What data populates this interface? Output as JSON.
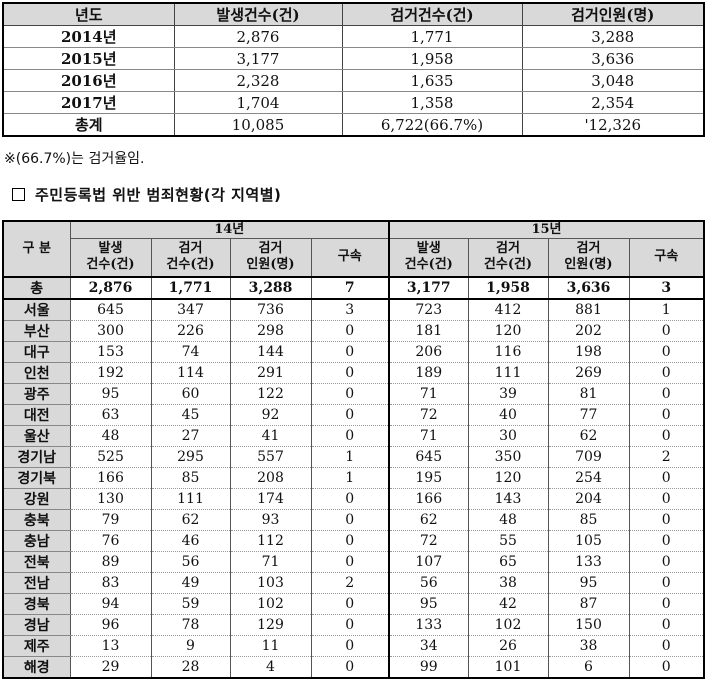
{
  "summary": {
    "headers": [
      "년도",
      "발생건수(건)",
      "검거건수(건)",
      "검거인원(명)"
    ],
    "rows": [
      [
        "2014년",
        "2,876",
        "1,771",
        "3,288"
      ],
      [
        "2015년",
        "3,177",
        "1,958",
        "3,636"
      ],
      [
        "2016년",
        "2,328",
        "1,635",
        "3,048"
      ],
      [
        "2017년",
        "1,704",
        "1,358",
        "2,354"
      ],
      [
        "총계",
        "10,085",
        "6,722(66.7%)",
        "'12,326"
      ]
    ]
  },
  "note": "※(66.7%)는 검거율임.",
  "subtitle": "주민등록법 위반 범죄현황(각 지역별)",
  "regional": {
    "corner": "구 분",
    "year_groups": [
      "14년",
      "15년"
    ],
    "sub_headers": [
      "발생\n건수(건)",
      "검거\n건수(건)",
      "검거\n인원(명)",
      "구속",
      "발생\n건수(건)",
      "검거\n건수(건)",
      "검거\n인원(명)",
      "구속"
    ],
    "total": [
      "총",
      "2,876",
      "1,771",
      "3,288",
      "7",
      "3,177",
      "1,958",
      "3,636",
      "3"
    ],
    "rows": [
      [
        "서울",
        "645",
        "347",
        "736",
        "3",
        "723",
        "412",
        "881",
        "1"
      ],
      [
        "부산",
        "300",
        "226",
        "298",
        "0",
        "181",
        "120",
        "202",
        "0"
      ],
      [
        "대구",
        "153",
        "74",
        "144",
        "0",
        "206",
        "116",
        "198",
        "0"
      ],
      [
        "인천",
        "192",
        "114",
        "291",
        "0",
        "189",
        "111",
        "269",
        "0"
      ],
      [
        "광주",
        "95",
        "60",
        "122",
        "0",
        "71",
        "39",
        "81",
        "0"
      ],
      [
        "대전",
        "63",
        "45",
        "92",
        "0",
        "72",
        "40",
        "77",
        "0"
      ],
      [
        "울산",
        "48",
        "27",
        "41",
        "0",
        "71",
        "30",
        "62",
        "0"
      ],
      [
        "경기남",
        "525",
        "295",
        "557",
        "1",
        "645",
        "350",
        "709",
        "2"
      ],
      [
        "경기북",
        "166",
        "85",
        "208",
        "1",
        "195",
        "120",
        "254",
        "0"
      ],
      [
        "강원",
        "130",
        "111",
        "174",
        "0",
        "166",
        "143",
        "204",
        "0"
      ],
      [
        "충북",
        "79",
        "62",
        "93",
        "0",
        "62",
        "48",
        "85",
        "0"
      ],
      [
        "충남",
        "76",
        "46",
        "112",
        "0",
        "72",
        "55",
        "105",
        "0"
      ],
      [
        "전북",
        "89",
        "56",
        "71",
        "0",
        "107",
        "65",
        "133",
        "0"
      ],
      [
        "전남",
        "83",
        "49",
        "103",
        "2",
        "56",
        "38",
        "95",
        "0"
      ],
      [
        "경북",
        "94",
        "59",
        "102",
        "0",
        "95",
        "42",
        "87",
        "0"
      ],
      [
        "경남",
        "96",
        "78",
        "129",
        "0",
        "133",
        "102",
        "150",
        "0"
      ],
      [
        "제주",
        "13",
        "9",
        "11",
        "0",
        "34",
        "26",
        "38",
        "0"
      ],
      [
        "해경",
        "29",
        "28",
        "4",
        "0",
        "99",
        "101",
        "6",
        "0"
      ]
    ]
  }
}
